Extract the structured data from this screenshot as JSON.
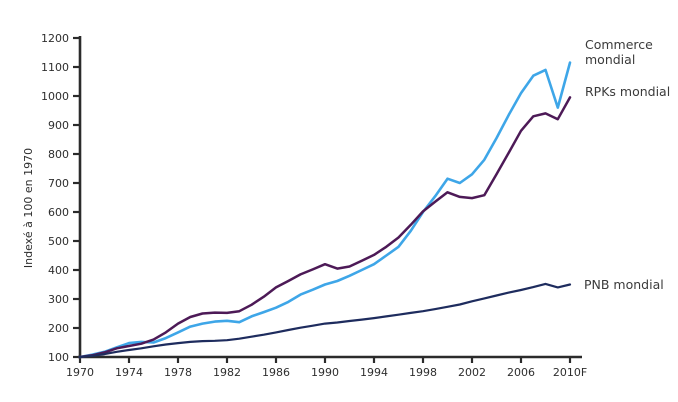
{
  "figure": {
    "background": "#ffffff",
    "axis_color": "#2b2b2b",
    "tick_text_color": "#2e2e2e",
    "annotation_text_color": "#3b3b3b"
  },
  "legend": {
    "commerce_line1": "Commerce",
    "commerce_line2": "mondial",
    "rpks": "RPKs mondial",
    "pnb": "PNB mondial"
  },
  "chart_data": {
    "type": "line",
    "title": "",
    "xlabel": "",
    "ylabel": "Indexé à 100 en 1970",
    "xlim": [
      1970,
      2010
    ],
    "ylim": [
      100,
      1200
    ],
    "grid": false,
    "legend_position": "labels-at-right-line-endpoints",
    "x_ticks": [
      1970,
      1974,
      1978,
      1982,
      1986,
      1990,
      1994,
      1998,
      2002,
      2006,
      2010
    ],
    "x_tick_labels": [
      "1970",
      "1974",
      "1978",
      "1982",
      "1986",
      "1990",
      "1994",
      "1998",
      "2002",
      "2006",
      "2010F"
    ],
    "y_ticks": [
      100,
      200,
      300,
      400,
      500,
      600,
      700,
      800,
      900,
      1000,
      1100,
      1200
    ],
    "x": [
      1970,
      1971,
      1972,
      1973,
      1974,
      1975,
      1976,
      1977,
      1978,
      1979,
      1980,
      1981,
      1982,
      1983,
      1984,
      1985,
      1986,
      1987,
      1988,
      1989,
      1990,
      1991,
      1992,
      1993,
      1994,
      1995,
      1996,
      1997,
      1998,
      1999,
      2000,
      2001,
      2002,
      2003,
      2004,
      2005,
      2006,
      2007,
      2008,
      2009,
      2010
    ],
    "series": [
      {
        "name": "Commerce mondial",
        "color": "#3ea6e8",
        "values": [
          100,
          108,
          118,
          133,
          148,
          152,
          150,
          165,
          185,
          205,
          215,
          222,
          225,
          220,
          240,
          255,
          270,
          290,
          315,
          332,
          350,
          362,
          380,
          400,
          420,
          450,
          480,
          535,
          600,
          655,
          715,
          700,
          730,
          780,
          855,
          935,
          1010,
          1070,
          1090,
          960,
          1115
        ]
      },
      {
        "name": "RPKs mondial",
        "color": "#4d1a57",
        "values": [
          100,
          106,
          116,
          130,
          138,
          146,
          160,
          185,
          215,
          238,
          250,
          253,
          252,
          258,
          280,
          308,
          340,
          362,
          385,
          402,
          420,
          405,
          412,
          432,
          452,
          480,
          512,
          556,
          602,
          636,
          668,
          652,
          648,
          658,
          730,
          805,
          880,
          930,
          940,
          920,
          995
        ]
      },
      {
        "name": "PNB mondial",
        "color": "#1e2c5e",
        "values": [
          100,
          104,
          110,
          118,
          124,
          130,
          137,
          143,
          148,
          152,
          155,
          156,
          158,
          163,
          170,
          177,
          185,
          193,
          201,
          208,
          215,
          219,
          224,
          229,
          234,
          240,
          246,
          252,
          258,
          265,
          273,
          281,
          292,
          302,
          312,
          322,
          331,
          341,
          352,
          340,
          350
        ]
      }
    ]
  }
}
